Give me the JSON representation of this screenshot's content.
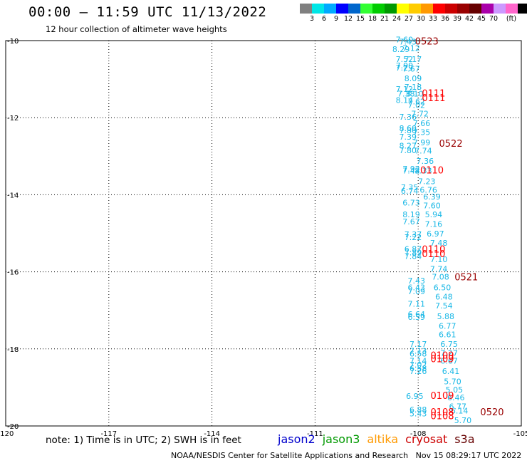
{
  "title": "00:00 – 11:59 UTC 11/13/2022",
  "subtitle": "12 hour collection of altimeter wave heights",
  "colorbar": {
    "colors": [
      "#808080",
      "#00e6e6",
      "#00aaff",
      "#0000ff",
      "#0066cc",
      "#33ff33",
      "#00cc00",
      "#009900",
      "#ffff00",
      "#ffcc00",
      "#ff9900",
      "#ff0000",
      "#cc0000",
      "#990000",
      "#660000",
      "#aa00aa",
      "#cc99ff",
      "#ff66cc",
      "#000000"
    ],
    "labels": [
      "3",
      "6",
      "9",
      "12",
      "15",
      "18",
      "21",
      "24",
      "27",
      "30",
      "33",
      "36",
      "39",
      "42",
      "45",
      "70",
      "(ft)"
    ]
  },
  "footer": {
    "note": "note: 1) Time is in UTC; 2) SWH is in feet",
    "satellites": [
      {
        "name": "jason2",
        "color": "#0000cc"
      },
      {
        "name": "jason3",
        "color": "#009900"
      },
      {
        "name": "altika",
        "color": "#ff9900"
      },
      {
        "name": "cryosat",
        "color": "#cc0000"
      },
      {
        "name": "s3a",
        "color": "#660000"
      }
    ],
    "credit": "NOAA/NESDIS Center for Satellite Applications and Research   Nov 15 08:29:17 UTC 2022"
  },
  "chart_data": {
    "type": "scatter",
    "xlim": [
      -120,
      -105
    ],
    "ylim": [
      -20,
      -10
    ],
    "x_ticks": [
      "-120",
      "-117",
      "-114",
      "-111",
      "-108",
      "-105"
    ],
    "y_ticks": [
      "-10",
      "-12",
      "-14",
      "-16",
      "-18",
      "-20"
    ],
    "grid": true,
    "point_color": "#1ab8e6",
    "points": [
      {
        "x": -108.4,
        "y": -10.05,
        "v": "7.60"
      },
      {
        "x": -108.3,
        "y": -10.1,
        "v": "7.43"
      },
      {
        "x": -108.5,
        "y": -10.3,
        "v": "8.29"
      },
      {
        "x": -108.2,
        "y": -10.27,
        "v": "7.12"
      },
      {
        "x": -108.4,
        "y": -10.55,
        "v": "7.52"
      },
      {
        "x": -108.15,
        "y": -10.55,
        "v": "7.17"
      },
      {
        "x": -108.4,
        "y": -10.72,
        "v": "7.90"
      },
      {
        "x": -108.4,
        "y": -10.78,
        "v": "7.29"
      },
      {
        "x": -108.2,
        "y": -10.8,
        "v": "7.67"
      },
      {
        "x": -108.15,
        "y": -11.05,
        "v": "8.09"
      },
      {
        "x": -108.15,
        "y": -11.28,
        "v": "7.18"
      },
      {
        "x": -108.4,
        "y": -11.33,
        "v": "7.12"
      },
      {
        "x": -108.35,
        "y": -11.45,
        "v": "7.38"
      },
      {
        "x": -108.1,
        "y": -11.45,
        "v": "8.10"
      },
      {
        "x": -108.4,
        "y": -11.62,
        "v": "8.14"
      },
      {
        "x": -108.05,
        "y": -11.65,
        "v": "7.62"
      },
      {
        "x": -108.05,
        "y": -11.75,
        "v": "7.02"
      },
      {
        "x": -107.95,
        "y": -11.97,
        "v": "7.72"
      },
      {
        "x": -108.3,
        "y": -12.05,
        "v": "7.36"
      },
      {
        "x": -107.9,
        "y": -12.22,
        "v": "7.66"
      },
      {
        "x": -108.3,
        "y": -12.35,
        "v": "8.60"
      },
      {
        "x": -108.3,
        "y": -12.4,
        "v": "7.80"
      },
      {
        "x": -107.9,
        "y": -12.45,
        "v": "7.35"
      },
      {
        "x": -108.3,
        "y": -12.57,
        "v": "7.39"
      },
      {
        "x": -108.3,
        "y": -12.8,
        "v": "8.27"
      },
      {
        "x": -107.9,
        "y": -12.72,
        "v": "7.99"
      },
      {
        "x": -108.3,
        "y": -12.92,
        "v": "7.80"
      },
      {
        "x": -107.85,
        "y": -12.93,
        "v": "7.74"
      },
      {
        "x": -107.8,
        "y": -13.2,
        "v": "7.36"
      },
      {
        "x": -108.2,
        "y": -13.4,
        "v": "7.92"
      },
      {
        "x": -108.2,
        "y": -13.45,
        "v": "7.42"
      },
      {
        "x": -107.85,
        "y": -13.45,
        "v": "8.33"
      },
      {
        "x": -107.75,
        "y": -13.72,
        "v": "7.23"
      },
      {
        "x": -108.25,
        "y": -13.88,
        "v": "7.35"
      },
      {
        "x": -108.25,
        "y": -13.97,
        "v": "6.74"
      },
      {
        "x": -107.7,
        "y": -13.95,
        "v": "6.76"
      },
      {
        "x": -107.6,
        "y": -14.12,
        "v": "6.39"
      },
      {
        "x": -108.2,
        "y": -14.28,
        "v": "6.73"
      },
      {
        "x": -107.6,
        "y": -14.35,
        "v": "7.60"
      },
      {
        "x": -108.2,
        "y": -14.58,
        "v": "8.19"
      },
      {
        "x": -107.55,
        "y": -14.58,
        "v": "5.94"
      },
      {
        "x": -108.2,
        "y": -14.77,
        "v": "7.67"
      },
      {
        "x": -107.55,
        "y": -14.83,
        "v": "7.16"
      },
      {
        "x": -108.15,
        "y": -15.1,
        "v": "7.37"
      },
      {
        "x": -107.5,
        "y": -15.08,
        "v": "6.97"
      },
      {
        "x": -108.15,
        "y": -15.18,
        "v": "7.22"
      },
      {
        "x": -107.4,
        "y": -15.32,
        "v": "7.48"
      },
      {
        "x": -108.15,
        "y": -15.48,
        "v": "6.87"
      },
      {
        "x": -108.15,
        "y": -15.57,
        "v": "7.89"
      },
      {
        "x": -108.15,
        "y": -15.67,
        "v": "7.84"
      },
      {
        "x": -107.4,
        "y": -15.75,
        "v": "7.10"
      },
      {
        "x": -107.4,
        "y": -16.0,
        "v": "7.74"
      },
      {
        "x": -108.05,
        "y": -16.3,
        "v": "7.43"
      },
      {
        "x": -107.35,
        "y": -16.2,
        "v": "7.08"
      },
      {
        "x": -108.05,
        "y": -16.48,
        "v": "6.43"
      },
      {
        "x": -108.05,
        "y": -16.58,
        "v": "7.09"
      },
      {
        "x": -107.3,
        "y": -16.48,
        "v": "6.50"
      },
      {
        "x": -107.25,
        "y": -16.72,
        "v": "6.48"
      },
      {
        "x": -108.05,
        "y": -16.9,
        "v": "7.11"
      },
      {
        "x": -107.25,
        "y": -16.95,
        "v": "7.54"
      },
      {
        "x": -108.05,
        "y": -17.17,
        "v": "6.64"
      },
      {
        "x": -108.05,
        "y": -17.25,
        "v": "6.59"
      },
      {
        "x": -107.2,
        "y": -17.23,
        "v": "5.88"
      },
      {
        "x": -107.15,
        "y": -17.48,
        "v": "6.77"
      },
      {
        "x": -107.15,
        "y": -17.7,
        "v": "6.61"
      },
      {
        "x": -108.0,
        "y": -17.95,
        "v": "7.17"
      },
      {
        "x": -107.1,
        "y": -17.95,
        "v": "6.75"
      },
      {
        "x": -108.0,
        "y": -18.12,
        "v": "7.13"
      },
      {
        "x": -108.0,
        "y": -18.2,
        "v": "6.58"
      },
      {
        "x": -107.1,
        "y": -18.18,
        "v": "7.27"
      },
      {
        "x": -108.0,
        "y": -18.38,
        "v": "7.14"
      },
      {
        "x": -108.0,
        "y": -18.48,
        "v": "7.02"
      },
      {
        "x": -107.1,
        "y": -18.38,
        "v": "6.67"
      },
      {
        "x": -108.0,
        "y": -18.58,
        "v": "6.58"
      },
      {
        "x": -108.0,
        "y": -18.65,
        "v": "7.26"
      },
      {
        "x": -107.05,
        "y": -18.65,
        "v": "6.41"
      },
      {
        "x": -107.0,
        "y": -18.92,
        "v": "5.70"
      },
      {
        "x": -106.95,
        "y": -19.13,
        "v": "5.05"
      },
      {
        "x": -108.1,
        "y": -19.3,
        "v": "6.95"
      },
      {
        "x": -106.9,
        "y": -19.33,
        "v": "6.46"
      },
      {
        "x": -106.85,
        "y": -19.57,
        "v": "6.77"
      },
      {
        "x": -108.0,
        "y": -19.65,
        "v": "6.88"
      },
      {
        "x": -108.0,
        "y": -19.75,
        "v": "5.43"
      },
      {
        "x": -106.8,
        "y": -19.68,
        "v": "6.14"
      },
      {
        "x": -106.7,
        "y": -19.93,
        "v": "5.70"
      }
    ],
    "time_labels": [
      {
        "x": -107.75,
        "y": -10.1,
        "v": "0523",
        "color": "#990000"
      },
      {
        "x": -107.55,
        "y": -11.45,
        "v": "0111",
        "color": "#ff0000"
      },
      {
        "x": -107.55,
        "y": -11.57,
        "v": "0111",
        "color": "#ff0000"
      },
      {
        "x": -107.05,
        "y": -12.75,
        "v": "0522",
        "color": "#990000"
      },
      {
        "x": -107.6,
        "y": -13.45,
        "v": "0110",
        "color": "#ff0000"
      },
      {
        "x": -107.55,
        "y": -15.5,
        "v": "0110",
        "color": "#ff0000"
      },
      {
        "x": -107.55,
        "y": -15.62,
        "v": "0110",
        "color": "#ff0000"
      },
      {
        "x": -106.6,
        "y": -16.22,
        "v": "0521",
        "color": "#990000"
      },
      {
        "x": -107.3,
        "y": -18.25,
        "v": "0109",
        "color": "#ff0000"
      },
      {
        "x": -107.3,
        "y": -18.35,
        "v": "0109",
        "color": "#ff0000"
      },
      {
        "x": -107.3,
        "y": -19.3,
        "v": "0109",
        "color": "#ff0000"
      },
      {
        "x": -107.3,
        "y": -19.72,
        "v": "0108",
        "color": "#ff0000"
      },
      {
        "x": -107.3,
        "y": -19.82,
        "v": "0108",
        "color": "#ff0000"
      },
      {
        "x": -105.85,
        "y": -19.72,
        "v": "0520",
        "color": "#990000"
      }
    ]
  }
}
